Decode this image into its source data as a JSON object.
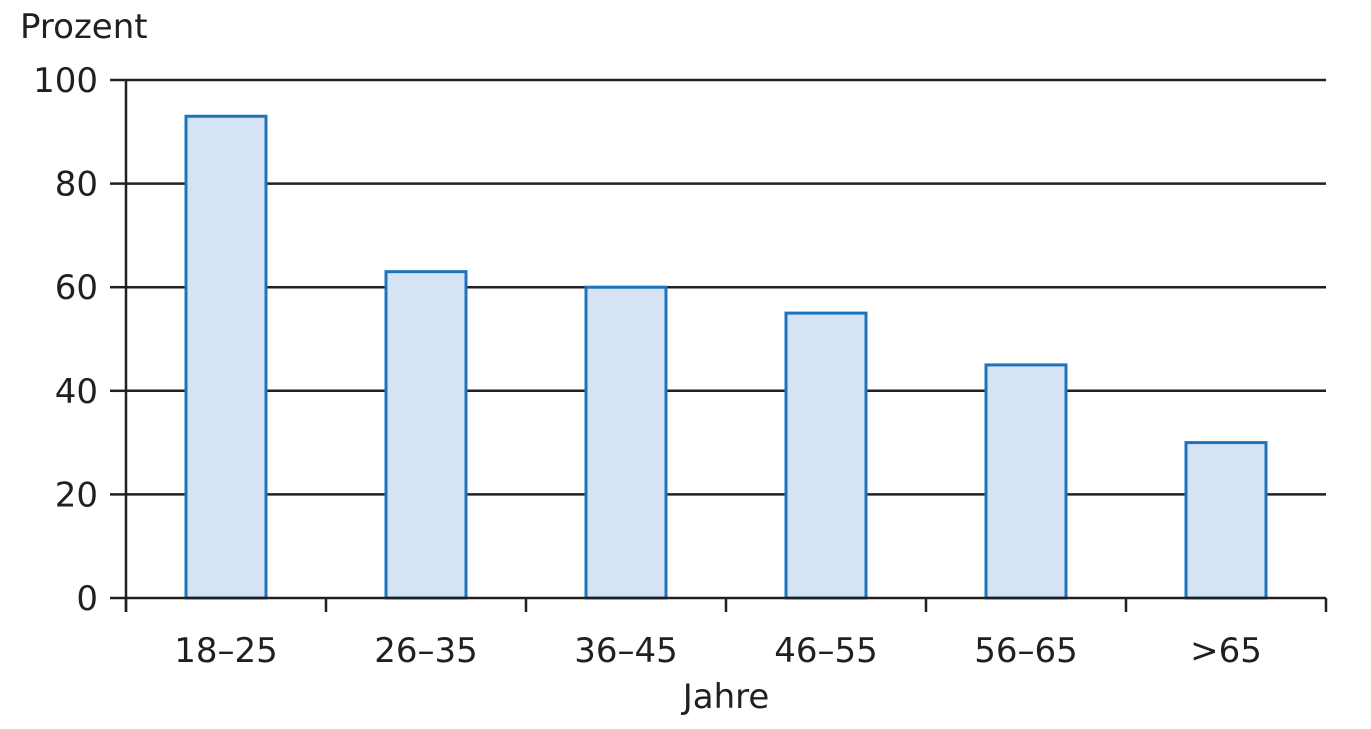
{
  "chart_data": {
    "type": "bar",
    "categories": [
      "18–25",
      "26–35",
      "36–45",
      "46–55",
      "56–65",
      ">65"
    ],
    "values": [
      93,
      63,
      60,
      55,
      45,
      30
    ],
    "xlabel": "Jahre",
    "ylabel": "Prozent",
    "ylim": [
      0,
      100
    ],
    "yticks": [
      0,
      20,
      40,
      60,
      80,
      100
    ],
    "grid": true,
    "colors": {
      "bar_fill": "#d6e3f4",
      "bar_stroke": "#1c75bc",
      "axis": "#231f20",
      "grid": "#231f20"
    }
  }
}
